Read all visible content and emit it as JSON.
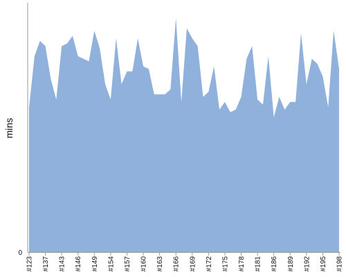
{
  "chart_data": {
    "type": "area",
    "title": "",
    "xlabel": "",
    "ylabel": "mins",
    "y_ticks": [
      "0"
    ],
    "x_tick_labels": [
      "#123",
      "#137",
      "#143",
      "#146",
      "#149",
      "#154",
      "#157",
      "#160",
      "#163",
      "#166",
      "#169",
      "#172",
      "#175",
      "#178",
      "#181",
      "#186",
      "#189",
      "#192",
      "#195",
      "#198"
    ],
    "x_tick_positions": [
      0,
      3,
      6,
      9,
      12,
      15,
      18,
      21,
      24,
      27,
      30,
      33,
      36,
      39,
      42,
      45,
      48,
      51,
      54,
      57
    ],
    "values": [
      57,
      77,
      83,
      81,
      68,
      60,
      81,
      82,
      85,
      77,
      76,
      75,
      87,
      80,
      66,
      60,
      84,
      66,
      71,
      71,
      84,
      73,
      72,
      62,
      62,
      62,
      64,
      92,
      59,
      88,
      84,
      81,
      61,
      63,
      73,
      56,
      59,
      55,
      56,
      61,
      76,
      81,
      60,
      58,
      77,
      53,
      61,
      56,
      59,
      59,
      86,
      66,
      76,
      74,
      69,
      57,
      87,
      72
    ],
    "ylim": [
      0,
      98
    ],
    "grid": false,
    "colors": {
      "fill": "#8fb1dc",
      "axis": "#999999",
      "text": "#111111"
    }
  }
}
